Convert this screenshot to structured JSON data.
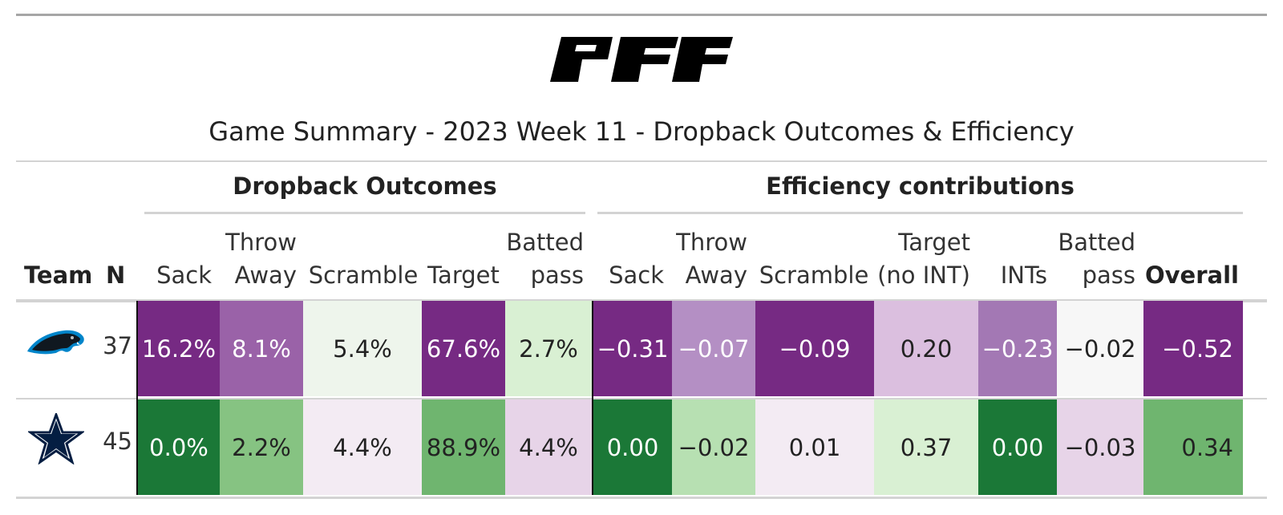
{
  "header": {
    "logo_text": "PFF",
    "title": "Game Summary - 2023 Week 11 - Dropback Outcomes & Efficiency"
  },
  "groups": {
    "outcomes": "Dropback Outcomes",
    "efficiency": "Efficiency contributions"
  },
  "columns": {
    "team": "Team",
    "n": "N",
    "sack": "Sack",
    "throw_away_1": "Throw",
    "throw_away_2": "Away",
    "scramble": "Scramble",
    "target": "Target",
    "batted_1": "Batted",
    "batted_2": "pass",
    "e_sack": "Sack",
    "e_throw_1": "Throw",
    "e_throw_2": "Away",
    "e_scramble": "Scramble",
    "e_target_1": "Target",
    "e_target_2": "(no INT)",
    "e_ints": "INTs",
    "e_batted_1": "Batted",
    "e_batted_2": "pass",
    "overall": "Overall"
  },
  "rows": [
    {
      "team_icon": "panthers-logo",
      "n": "37",
      "sack": "16.2%",
      "throw_away": "8.1%",
      "scramble": "5.4%",
      "target": "67.6%",
      "batted": "2.7%",
      "e_sack": "−0.31",
      "e_throw": "−0.07",
      "e_scramble": "−0.09",
      "e_target": "0.20",
      "e_ints": "−0.23",
      "e_batted": "−0.02",
      "overall": "−0.52"
    },
    {
      "team_icon": "cowboys-star-logo",
      "n": "45",
      "sack": "0.0%",
      "throw_away": "2.2%",
      "scramble": "4.4%",
      "target": "88.9%",
      "batted": "4.4%",
      "e_sack": "0.00",
      "e_throw": "−0.02",
      "e_scramble": "0.01",
      "e_target": "0.37",
      "e_ints": "0.00",
      "e_batted": "−0.03",
      "overall": "0.34"
    }
  ],
  "colors": {
    "dark_purple": "#762a83",
    "mid_purple": "#9a62a8",
    "light_purple": "#b48fc4",
    "pale_purple": "#dbbfdf",
    "lavender": "#e7d4e8",
    "very_light_purple": "#f3ebf3",
    "neutral": "#f7f7f7",
    "very_light_green": "#eef5ec",
    "pale_green": "#d9f0d3",
    "light_green": "#b7e0b2",
    "mid_green": "#86c382",
    "green": "#6fb56f",
    "dark_green": "#1b7837"
  }
}
